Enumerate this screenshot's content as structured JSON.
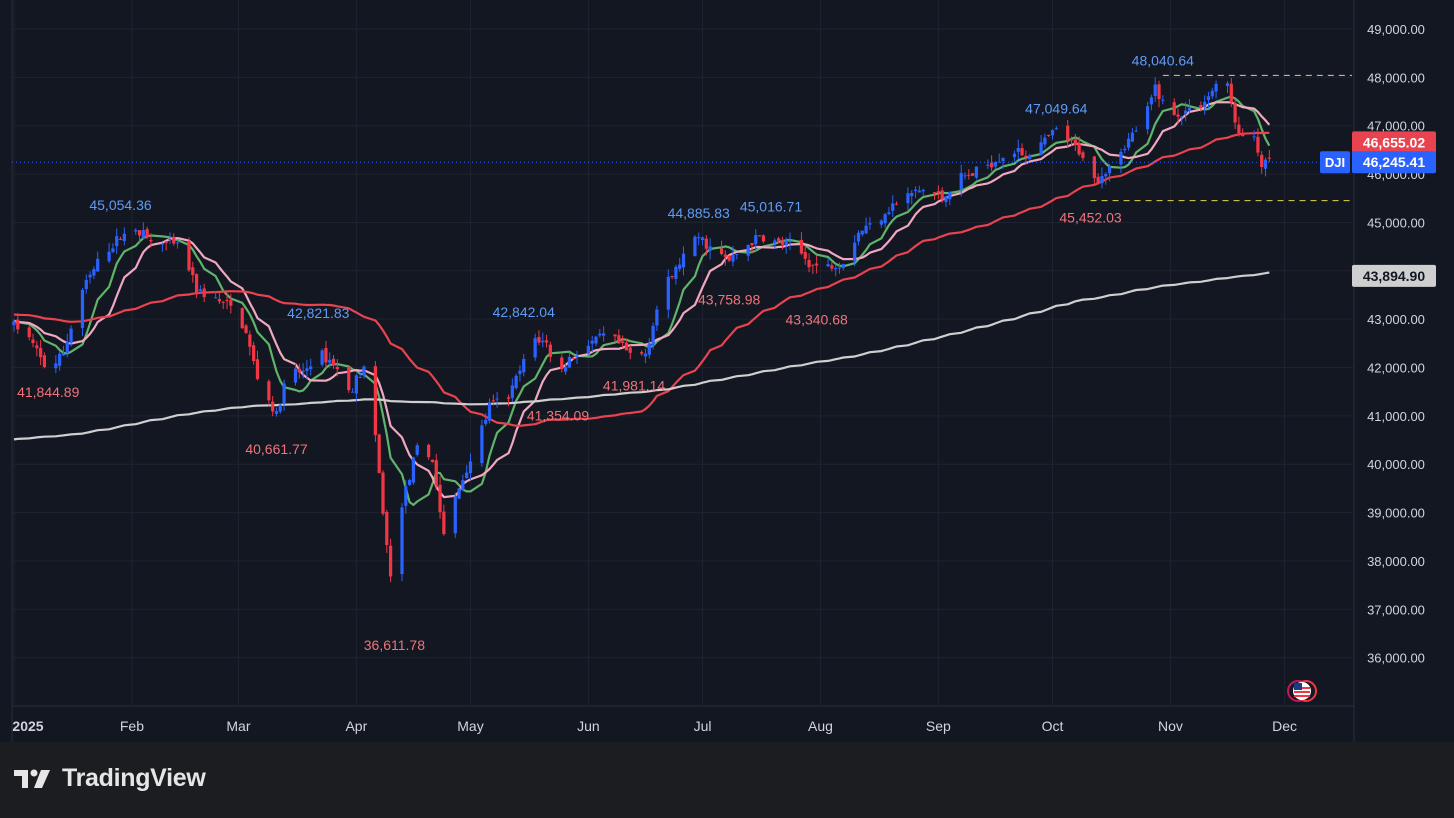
{
  "app": {
    "brand": "TradingView"
  },
  "chart_data": {
    "type": "candlestick",
    "symbol": "DJI",
    "last_price": 46245.41,
    "last_price_label": "46,245.41",
    "ylim": [
      35000,
      49600
    ],
    "y_ticks": [
      36000,
      37000,
      38000,
      39000,
      40000,
      41000,
      42000,
      43000,
      44000,
      45000,
      46000,
      47000,
      48000,
      49000
    ],
    "y_tick_labels": [
      "36,000.00",
      "37,000.00",
      "38,000.00",
      "39,000.00",
      "40,000.00",
      "41,000.00",
      "42,000.00",
      "43,000.00",
      "44,000.00",
      "45,000.00",
      "46,000.00",
      "47,000.00",
      "48,000.00",
      "49,000.00"
    ],
    "x_labels": [
      "2025",
      "Feb",
      "Mar",
      "Apr",
      "May",
      "Jun",
      "Jul",
      "Aug",
      "Sep",
      "Oct",
      "Nov",
      "Dec"
    ],
    "x_label_days": [
      0,
      31,
      59,
      90,
      120,
      151,
      181,
      212,
      243,
      273,
      304,
      334
    ],
    "x_range_days": [
      0,
      347
    ],
    "price_waypoints": [
      [
        0,
        42900
      ],
      [
        4,
        42600
      ],
      [
        9,
        41900
      ],
      [
        13,
        42300
      ],
      [
        18,
        43600
      ],
      [
        23,
        44300
      ],
      [
        28,
        44700
      ],
      [
        32,
        44900
      ],
      [
        36,
        44600
      ],
      [
        44,
        44500
      ],
      [
        48,
        43600
      ],
      [
        53,
        43400
      ],
      [
        58,
        43200
      ],
      [
        61,
        42700
      ],
      [
        64,
        41800
      ],
      [
        69,
        41000
      ],
      [
        72,
        41900
      ],
      [
        76,
        41900
      ],
      [
        80,
        42300
      ],
      [
        84,
        42100
      ],
      [
        88,
        41500
      ],
      [
        92,
        42000
      ],
      [
        95,
        40500
      ],
      [
        98,
        38300
      ],
      [
        100,
        37000
      ],
      [
        102,
        39200
      ],
      [
        106,
        40300
      ],
      [
        110,
        40100
      ],
      [
        113,
        38500
      ],
      [
        116,
        39300
      ],
      [
        118,
        39700
      ],
      [
        122,
        40500
      ],
      [
        125,
        41200
      ],
      [
        130,
        41400
      ],
      [
        134,
        42100
      ],
      [
        137,
        42600
      ],
      [
        140,
        42500
      ],
      [
        143,
        41800
      ],
      [
        146,
        42200
      ],
      [
        152,
        42500
      ],
      [
        156,
        42700
      ],
      [
        160,
        42400
      ],
      [
        163,
        42200
      ],
      [
        166,
        42300
      ],
      [
        170,
        43500
      ],
      [
        176,
        44300
      ],
      [
        180,
        44700
      ],
      [
        184,
        44400
      ],
      [
        188,
        44200
      ],
      [
        192,
        44500
      ],
      [
        196,
        44700
      ],
      [
        200,
        44600
      ],
      [
        205,
        44500
      ],
      [
        210,
        44100
      ],
      [
        214,
        44100
      ],
      [
        218,
        44200
      ],
      [
        222,
        44800
      ],
      [
        226,
        45000
      ],
      [
        230,
        45300
      ],
      [
        236,
        45600
      ],
      [
        240,
        45700
      ],
      [
        244,
        45500
      ],
      [
        248,
        45900
      ],
      [
        252,
        46000
      ],
      [
        256,
        46200
      ],
      [
        262,
        46500
      ],
      [
        266,
        46400
      ],
      [
        270,
        46600
      ],
      [
        274,
        46900
      ],
      [
        277,
        46700
      ],
      [
        281,
        46400
      ],
      [
        283,
        45800
      ],
      [
        286,
        46000
      ],
      [
        290,
        46400
      ],
      [
        294,
        46800
      ],
      [
        298,
        47300
      ],
      [
        300,
        47800
      ],
      [
        302,
        47500
      ],
      [
        305,
        47200
      ],
      [
        308,
        47300
      ],
      [
        311,
        47400
      ],
      [
        314,
        47600
      ],
      [
        317,
        48000
      ],
      [
        319,
        47800
      ],
      [
        322,
        46800
      ],
      [
        326,
        46700
      ],
      [
        328,
        46200
      ],
      [
        331,
        46245.41
      ]
    ],
    "sma_series": [
      {
        "color": "#5fb36a",
        "period": 8
      },
      {
        "color": "#f0a8c0",
        "period": 13
      },
      {
        "color": "#e8434e",
        "period": 50
      },
      {
        "color": "#cfcfcf",
        "period": 200
      }
    ],
    "right_axis_tags": [
      {
        "text": "46,655.02",
        "value": 46655.02,
        "bg": "#e8434e",
        "fg": "#ffffff"
      },
      {
        "text": "46,245.41",
        "value": 46245.41,
        "bg": "#2962ff",
        "fg": "#ffffff"
      },
      {
        "text": "43,894.90",
        "value": 43894.9,
        "bg": "#cfcfcf",
        "fg": "#131722"
      }
    ],
    "annotations": [
      {
        "text": "41,844.89",
        "color": "#f0737a",
        "day": 9,
        "value": 41844.89,
        "kind": "low"
      },
      {
        "text": "45,054.36",
        "color": "#5f9cf7",
        "day": 28,
        "value": 45054.36,
        "kind": "high"
      },
      {
        "text": "40,661.77",
        "color": "#f0737a",
        "day": 69,
        "value": 40661.77,
        "kind": "low"
      },
      {
        "text": "42,821.83",
        "color": "#5f9cf7",
        "day": 80,
        "value": 42821.83,
        "kind": "high"
      },
      {
        "text": "36,611.78",
        "color": "#f0737a",
        "day": 100,
        "value": 36611.78,
        "kind": "low"
      },
      {
        "text": "42,842.04",
        "color": "#5f9cf7",
        "day": 134,
        "value": 42842.04,
        "kind": "high"
      },
      {
        "text": "41,354.09",
        "color": "#f0737a",
        "day": 143,
        "value": 41354.09,
        "kind": "low"
      },
      {
        "text": "41,981.14",
        "color": "#f0737a",
        "day": 163,
        "value": 41981.14,
        "kind": "low"
      },
      {
        "text": "44,885.83",
        "color": "#5f9cf7",
        "day": 180,
        "value": 44885.83,
        "kind": "high"
      },
      {
        "text": "43,758.98",
        "color": "#f0737a",
        "day": 188,
        "value": 43758.98,
        "kind": "low"
      },
      {
        "text": "45,016.71",
        "color": "#5f9cf7",
        "day": 199,
        "value": 45016.71,
        "kind": "high"
      },
      {
        "text": "43,340.68",
        "color": "#f0737a",
        "day": 211,
        "value": 43340.68,
        "kind": "low"
      },
      {
        "text": "47,049.64",
        "color": "#5f9cf7",
        "day": 274,
        "value": 47049.64,
        "kind": "high"
      },
      {
        "text": "45,452.03",
        "color": "#f0737a",
        "day": 283,
        "value": 45452.03,
        "kind": "low"
      },
      {
        "text": "48,040.64",
        "color": "#5f9cf7",
        "day": 302,
        "value": 48040.64,
        "kind": "high"
      }
    ],
    "reference_lines": [
      {
        "value": 48040.64,
        "from_day": 302,
        "color": "#e8d44d"
      },
      {
        "value": 45452.03,
        "from_day": 283,
        "color": "#e8d44d"
      }
    ],
    "colors": {
      "up": "#2962ff",
      "down": "#f23645",
      "background": "#131722",
      "grid": "#1f2330",
      "axis_text": "#d1d4dc"
    }
  }
}
